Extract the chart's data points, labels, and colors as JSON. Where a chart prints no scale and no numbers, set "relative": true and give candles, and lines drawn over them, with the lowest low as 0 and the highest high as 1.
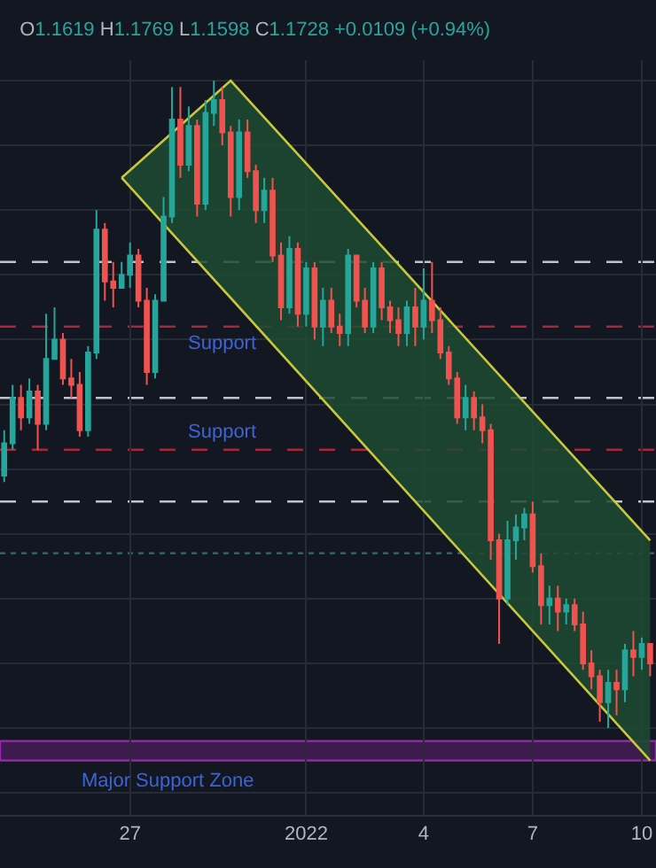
{
  "chart_data": {
    "type": "candlestick",
    "title": "O1.1619 H1.1769 L1.1598 C1.1728 +0.0109 (+0.94%)",
    "relative": true,
    "categories": [
      null,
      null,
      null,
      null,
      null,
      null,
      null,
      null,
      null,
      null,
      null,
      null,
      null,
      null,
      null,
      "27",
      null,
      null,
      null,
      null,
      null,
      null,
      null,
      null,
      null,
      null,
      null,
      null,
      null,
      null,
      null,
      null,
      null,
      null,
      null,
      null,
      "2022",
      null,
      null,
      null,
      null,
      null,
      null,
      null,
      null,
      null,
      null,
      null,
      null,
      null,
      "4",
      null,
      null,
      null,
      null,
      null,
      null,
      null,
      null,
      null,
      null,
      null,
      null,
      "7",
      null,
      null,
      null,
      null,
      null,
      null,
      null,
      null,
      null,
      null,
      null,
      null,
      "10",
      null
    ],
    "ohlc": [
      [
        0.39,
        0.46,
        0.38,
        0.44
      ],
      [
        0.44,
        0.53,
        0.43,
        0.51
      ],
      [
        0.51,
        0.53,
        0.46,
        0.48
      ],
      [
        0.48,
        0.54,
        0.47,
        0.52
      ],
      [
        0.52,
        0.53,
        0.43,
        0.47
      ],
      [
        0.47,
        0.64,
        0.46,
        0.57
      ],
      [
        0.57,
        0.65,
        0.57,
        0.6
      ],
      [
        0.6,
        0.61,
        0.53,
        0.54
      ],
      [
        0.54,
        0.57,
        0.51,
        0.53
      ],
      [
        0.53,
        0.55,
        0.45,
        0.46
      ],
      [
        0.46,
        0.59,
        0.45,
        0.58
      ],
      [
        0.58,
        0.8,
        0.57,
        0.77
      ],
      [
        0.77,
        0.78,
        0.66,
        0.69
      ],
      [
        0.69,
        0.72,
        0.65,
        0.68
      ],
      [
        0.68,
        0.72,
        0.68,
        0.7
      ],
      [
        0.7,
        0.75,
        0.68,
        0.73
      ],
      [
        0.73,
        0.74,
        0.65,
        0.66
      ],
      [
        0.66,
        0.68,
        0.53,
        0.55
      ],
      [
        0.55,
        0.67,
        0.54,
        0.66
      ],
      [
        0.66,
        0.82,
        0.66,
        0.79
      ],
      [
        0.79,
        0.99,
        0.78,
        0.94
      ],
      [
        0.94,
        0.99,
        0.85,
        0.87
      ],
      [
        0.87,
        0.96,
        0.86,
        0.93
      ],
      [
        0.93,
        0.94,
        0.79,
        0.81
      ],
      [
        0.81,
        0.97,
        0.8,
        0.95
      ],
      [
        0.95,
        1.0,
        0.93,
        0.97
      ],
      [
        0.97,
        0.99,
        0.9,
        0.92
      ],
      [
        0.92,
        0.93,
        0.79,
        0.82
      ],
      [
        0.82,
        0.94,
        0.8,
        0.92
      ],
      [
        0.92,
        0.94,
        0.85,
        0.86
      ],
      [
        0.86,
        0.87,
        0.78,
        0.8
      ],
      [
        0.8,
        0.85,
        0.78,
        0.83
      ],
      [
        0.83,
        0.85,
        0.72,
        0.73
      ],
      [
        0.73,
        0.75,
        0.63,
        0.65
      ],
      [
        0.65,
        0.76,
        0.64,
        0.74
      ],
      [
        0.74,
        0.75,
        0.62,
        0.64
      ],
      [
        0.64,
        0.72,
        0.62,
        0.71
      ],
      [
        0.71,
        0.72,
        0.6,
        0.62
      ],
      [
        0.62,
        0.68,
        0.59,
        0.66
      ],
      [
        0.66,
        0.68,
        0.61,
        0.62
      ],
      [
        0.62,
        0.64,
        0.59,
        0.61
      ],
      [
        0.61,
        0.74,
        0.59,
        0.73
      ],
      [
        0.73,
        0.73,
        0.65,
        0.66
      ],
      [
        0.66,
        0.68,
        0.61,
        0.62
      ],
      [
        0.62,
        0.72,
        0.61,
        0.71
      ],
      [
        0.71,
        0.72,
        0.63,
        0.65
      ],
      [
        0.65,
        0.66,
        0.61,
        0.63
      ],
      [
        0.63,
        0.65,
        0.59,
        0.61
      ],
      [
        0.61,
        0.66,
        0.59,
        0.65
      ],
      [
        0.65,
        0.68,
        0.59,
        0.62
      ],
      [
        0.62,
        0.71,
        0.6,
        0.66
      ],
      [
        0.66,
        0.72,
        0.61,
        0.63
      ],
      [
        0.63,
        0.65,
        0.57,
        0.58
      ],
      [
        0.58,
        0.59,
        0.53,
        0.54
      ],
      [
        0.54,
        0.55,
        0.47,
        0.48
      ],
      [
        0.48,
        0.53,
        0.46,
        0.51
      ],
      [
        0.51,
        0.52,
        0.46,
        0.48
      ],
      [
        0.48,
        0.5,
        0.44,
        0.46
      ],
      [
        0.46,
        0.47,
        0.26,
        0.29
      ],
      [
        0.29,
        0.3,
        0.13,
        0.2
      ],
      [
        0.2,
        0.32,
        0.19,
        0.29
      ],
      [
        0.29,
        0.33,
        0.26,
        0.31
      ],
      [
        0.31,
        0.34,
        0.29,
        0.33
      ],
      [
        0.33,
        0.35,
        0.24,
        0.25
      ],
      [
        0.25,
        0.27,
        0.16,
        0.19
      ],
      [
        0.19,
        0.22,
        0.16,
        0.2
      ],
      [
        0.2,
        0.22,
        0.15,
        0.18
      ],
      [
        0.18,
        0.2,
        0.16,
        0.19
      ],
      [
        0.19,
        0.2,
        0.15,
        0.16
      ],
      [
        0.16,
        0.18,
        0.09,
        0.1
      ],
      [
        0.1,
        0.12,
        0.06,
        0.08
      ],
      [
        0.08,
        0.09,
        0.01,
        0.04
      ],
      [
        0.04,
        0.09,
        0.0,
        0.07
      ],
      [
        0.07,
        0.09,
        0.02,
        0.06
      ],
      [
        0.06,
        0.13,
        0.04,
        0.12
      ],
      [
        0.12,
        0.15,
        0.08,
        0.11
      ],
      [
        0.11,
        0.14,
        0.09,
        0.13
      ],
      [
        0.13,
        0.13,
        0.08,
        0.1
      ]
    ],
    "colors": [
      "#26a69a",
      "#26a69a",
      "#ef5350",
      "#26a69a",
      "#ef5350",
      "#26a69a",
      "#26a69a",
      "#ef5350",
      "#ef5350",
      "#ef5350",
      "#26a69a",
      "#26a69a",
      "#ef5350",
      "#ef5350",
      "#26a69a",
      "#26a69a",
      "#ef5350",
      "#ef5350",
      "#26a69a",
      "#26a69a",
      "#26a69a",
      "#ef5350",
      "#26a69a",
      "#ef5350",
      "#26a69a",
      "#26a69a",
      "#ef5350",
      "#ef5350",
      "#26a69a",
      "#ef5350",
      "#ef5350",
      "#26a69a",
      "#ef5350",
      "#ef5350",
      "#26a69a",
      "#ef5350",
      "#26a69a",
      "#ef5350",
      "#26a69a",
      "#ef5350",
      "#ef5350",
      "#26a69a",
      "#ef5350",
      "#ef5350",
      "#26a69a",
      "#ef5350",
      "#ef5350",
      "#ef5350",
      "#26a69a",
      "#ef5350",
      "#26a69a",
      "#ef5350",
      "#ef5350",
      "#ef5350",
      "#ef5350",
      "#26a69a",
      "#ef5350",
      "#ef5350",
      "#ef5350",
      "#ef5350",
      "#26a69a",
      "#26a69a",
      "#26a69a",
      "#ef5350",
      "#ef5350",
      "#26a69a",
      "#ef5350",
      "#26a69a",
      "#ef5350",
      "#ef5350",
      "#ef5350",
      "#ef5350",
      "#26a69a",
      "#ef5350",
      "#26a69a",
      "#ef5350",
      "#26a69a",
      "#ef5350"
    ],
    "series": [
      {
        "type": "line",
        "color": "#c8c83c",
        "values": [
          null,
          null,
          null,
          null,
          null,
          null,
          null,
          null,
          null,
          null,
          null,
          null,
          null,
          null,
          0.85,
          null,
          null,
          null,
          null,
          null,
          null,
          null,
          null,
          null,
          null,
          null,
          null,
          null,
          null,
          null,
          null,
          null,
          null,
          null,
          null,
          null,
          null,
          null,
          null,
          null,
          null,
          null,
          null,
          null,
          null,
          null,
          null,
          null,
          null,
          null,
          null,
          null,
          null,
          null,
          null,
          null,
          null,
          null,
          null,
          null,
          null,
          null,
          null,
          null,
          null,
          null,
          null,
          null,
          null,
          null,
          null,
          null,
          null,
          null,
          null,
          null,
          null,
          -0.05
        ]
      },
      {
        "type": "area",
        "color": "#1f4a33",
        "values": [
          null,
          null,
          null,
          null,
          null,
          null,
          null,
          null,
          null,
          null,
          null,
          null,
          null,
          null,
          0.85,
          null,
          null,
          null,
          null,
          null,
          null,
          null,
          null,
          null,
          null,
          null,
          null,
          1.0,
          null,
          null,
          null,
          null,
          null,
          null,
          null,
          null,
          null,
          null,
          null,
          null,
          null,
          null,
          null,
          null,
          null,
          null,
          null,
          null,
          null,
          null,
          null,
          null,
          null,
          null,
          null,
          null,
          null,
          null,
          null,
          null,
          null,
          null,
          null,
          null,
          null,
          null,
          null,
          null,
          null,
          null,
          null,
          null,
          null,
          null,
          null,
          null,
          null,
          0.29
        ]
      },
      {
        "type": "line",
        "color": "#c8c83c",
        "values": [
          null,
          null,
          null,
          null,
          null,
          null,
          null,
          null,
          null,
          null,
          null,
          null,
          null,
          null,
          0.85,
          null,
          null,
          null,
          null,
          null,
          null,
          null,
          null,
          null,
          null,
          null,
          null,
          1.0,
          null,
          null,
          null,
          null,
          null,
          null,
          null,
          null,
          null,
          null,
          null,
          null,
          null,
          null,
          null,
          null,
          null,
          null,
          null,
          null,
          null,
          null,
          null,
          null,
          null,
          null,
          null,
          null,
          null,
          null,
          null,
          null,
          null,
          null,
          null,
          null,
          null,
          null,
          null,
          null,
          null,
          null,
          null,
          null,
          null,
          null,
          null,
          null,
          null,
          0.29
        ]
      }
    ],
    "ref_lines": [
      {
        "axis": "y",
        "value": 0.62,
        "label": "Support",
        "color": "#a8283a",
        "line_style": "dashed"
      },
      {
        "axis": "y",
        "value": 0.43,
        "label": "Support",
        "color": "#a8283a",
        "line_style": "dashed"
      },
      {
        "axis": "y",
        "value": 0.72,
        "color": "#c0c3cc",
        "line_style": "dashed"
      },
      {
        "axis": "y",
        "value": 0.51,
        "color": "#c0c3cc",
        "line_style": "dashed"
      },
      {
        "axis": "y",
        "value": 0.35,
        "color": "#c0c3cc",
        "line_style": "dashed"
      },
      {
        "axis": "y",
        "value": 0.27,
        "color": "#2f6f6a",
        "line_style": "dotted"
      }
    ],
    "bands": [
      {
        "axis": "y",
        "from": -0.05,
        "to": -0.02,
        "label": "Major Support Zone",
        "color": "#9c27b0"
      }
    ],
    "grid": true
  }
}
